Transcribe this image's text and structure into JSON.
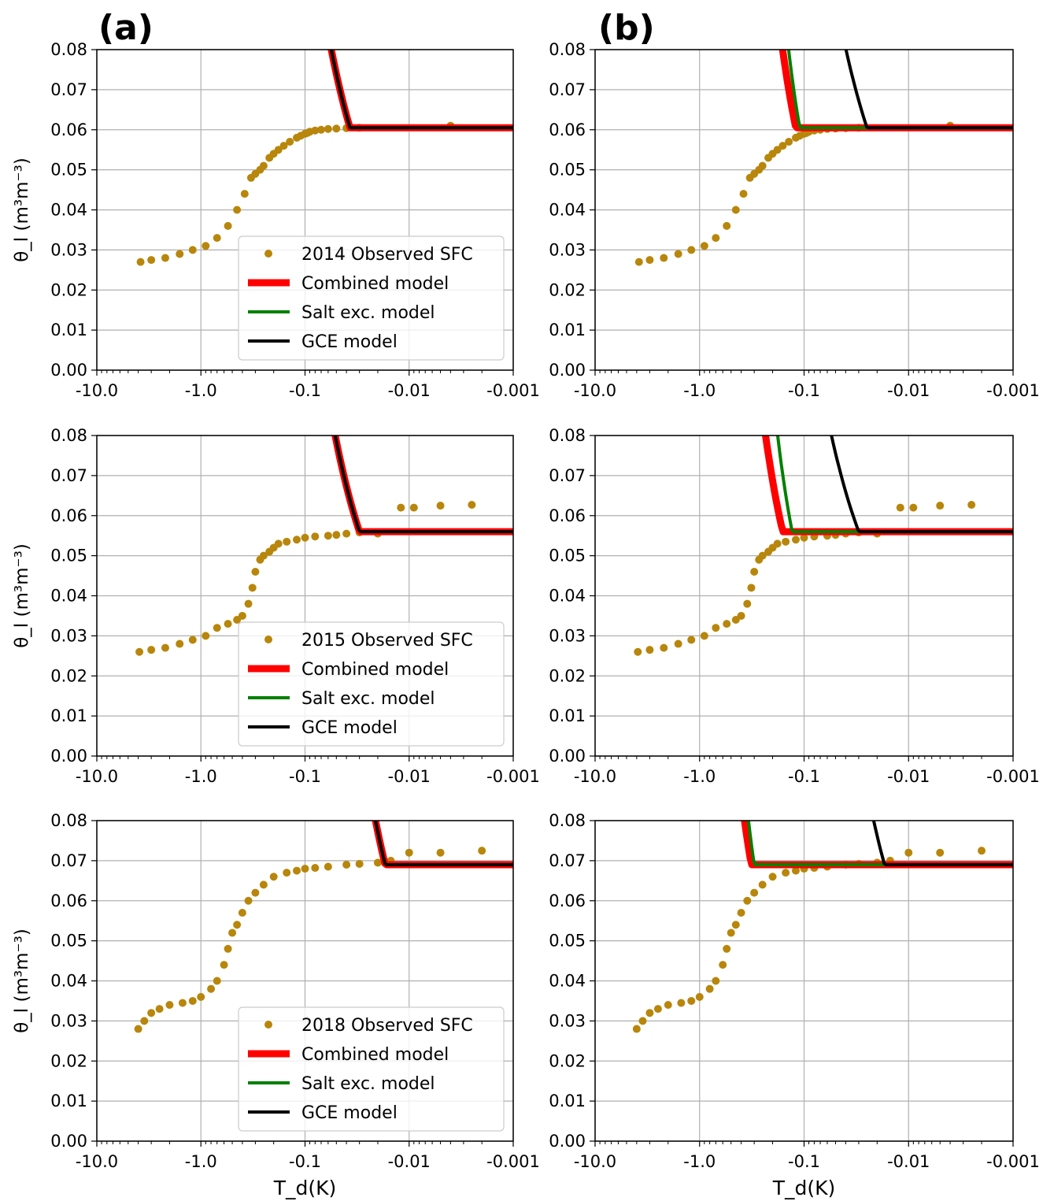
{
  "panel_labels": [
    "(a)",
    "(b)"
  ],
  "x_ticks": [
    "-10.0",
    "-1.0",
    "-0.1",
    "-0.01",
    "-0.001"
  ],
  "y_ticks": [
    "0.00",
    "0.01",
    "0.02",
    "0.03",
    "0.04",
    "0.05",
    "0.06",
    "0.07",
    "0.08"
  ],
  "colors": {
    "observed": "#b8860b",
    "combined": "#ff0000",
    "salt": "#008000",
    "gce": "#000000",
    "grid": "#b0b0b0"
  },
  "chart_data": [
    {
      "type": "scatter",
      "row": 0,
      "col": 0,
      "year": "2014",
      "xlabel": "",
      "ylabel": "θ_l (m³m⁻³)",
      "xscale": "log-negative",
      "xlim": [
        -10,
        -0.001
      ],
      "ylim": [
        0,
        0.08
      ],
      "grid": true,
      "legend": "lower-right",
      "legend_entries": [
        "2014 Observed SFC",
        "Combined model",
        "Salt exc. model",
        "GCE model"
      ],
      "observed": {
        "x": [
          -3.8,
          -3.0,
          -2.2,
          -1.6,
          -1.2,
          -0.9,
          -0.7,
          -0.55,
          -0.45,
          -0.38,
          -0.33,
          -0.3,
          -0.27,
          -0.25,
          -0.22,
          -0.2,
          -0.18,
          -0.16,
          -0.14,
          -0.12,
          -0.11,
          -0.1,
          -0.095,
          -0.09,
          -0.08,
          -0.07,
          -0.06,
          -0.05,
          -0.04,
          -0.03,
          -0.004
        ],
        "y": [
          0.027,
          0.0275,
          0.028,
          0.029,
          0.03,
          0.031,
          0.033,
          0.036,
          0.04,
          0.044,
          0.048,
          0.049,
          0.05,
          0.051,
          0.053,
          0.054,
          0.055,
          0.056,
          0.057,
          0.058,
          0.0585,
          0.059,
          0.0592,
          0.0595,
          0.0598,
          0.06,
          0.0602,
          0.0603,
          0.0604,
          0.0605,
          0.061
        ]
      },
      "combined": {
        "theta_s": 0.0605,
        "theta_r": 0.02,
        "T_knee": -0.037,
        "k": 0.95
      },
      "salt": {
        "theta_s": 0.0605,
        "theta_r": 0.02,
        "T_knee": -1e-05,
        "k": 1.0
      },
      "gce": {
        "theta_s": 0.0605,
        "theta_r": 0.02,
        "T_knee": -0.037,
        "k": 0.95
      }
    },
    {
      "type": "scatter",
      "row": 0,
      "col": 1,
      "year": "2014",
      "xlabel": "",
      "ylabel": "",
      "xscale": "log-negative",
      "xlim": [
        -10,
        -0.001
      ],
      "ylim": [
        0,
        0.08
      ],
      "grid": true,
      "legend": "none",
      "observed": {
        "x": [
          -3.8,
          -3.0,
          -2.2,
          -1.6,
          -1.2,
          -0.9,
          -0.7,
          -0.55,
          -0.45,
          -0.38,
          -0.33,
          -0.3,
          -0.27,
          -0.25,
          -0.22,
          -0.2,
          -0.18,
          -0.16,
          -0.14,
          -0.12,
          -0.11,
          -0.1,
          -0.095,
          -0.09,
          -0.08,
          -0.07,
          -0.06,
          -0.05,
          -0.04,
          -0.03,
          -0.004
        ],
        "y": [
          0.027,
          0.0275,
          0.028,
          0.029,
          0.03,
          0.031,
          0.033,
          0.036,
          0.04,
          0.044,
          0.048,
          0.049,
          0.05,
          0.051,
          0.053,
          0.054,
          0.055,
          0.056,
          0.057,
          0.058,
          0.0585,
          0.059,
          0.0592,
          0.0595,
          0.0598,
          0.06,
          0.0602,
          0.0603,
          0.0604,
          0.0605,
          0.061
        ]
      },
      "combined": {
        "theta_s": 0.0605,
        "theta_r": 0.02,
        "T_knee": -0.12,
        "k": 1.35
      },
      "salt": {
        "theta_s": 0.0605,
        "theta_r": 0.02,
        "T_knee": -0.11,
        "k": 1.6
      },
      "gce": {
        "theta_s": 0.0605,
        "theta_r": 0.02,
        "T_knee": -0.025,
        "k": 0.85
      }
    },
    {
      "type": "scatter",
      "row": 1,
      "col": 0,
      "year": "2015",
      "xlabel": "",
      "ylabel": "θ_l (m³m⁻³)",
      "xscale": "log-negative",
      "xlim": [
        -10,
        -0.001
      ],
      "ylim": [
        0,
        0.08
      ],
      "grid": true,
      "legend": "lower-right",
      "legend_entries": [
        "2015 Observed SFC",
        "Combined model",
        "Salt exc. model",
        "GCE model"
      ],
      "observed": {
        "x": [
          -3.9,
          -3.0,
          -2.2,
          -1.6,
          -1.2,
          -0.9,
          -0.7,
          -0.55,
          -0.45,
          -0.4,
          -0.35,
          -0.32,
          -0.3,
          -0.27,
          -0.25,
          -0.22,
          -0.2,
          -0.18,
          -0.15,
          -0.12,
          -0.1,
          -0.08,
          -0.06,
          -0.05,
          -0.04,
          -0.03,
          -0.02,
          -0.012,
          -0.009,
          -0.005,
          -0.0025
        ],
        "y": [
          0.026,
          0.0265,
          0.027,
          0.028,
          0.029,
          0.03,
          0.032,
          0.033,
          0.034,
          0.035,
          0.038,
          0.042,
          0.046,
          0.049,
          0.05,
          0.051,
          0.052,
          0.053,
          0.0535,
          0.054,
          0.0545,
          0.0548,
          0.055,
          0.0552,
          0.0555,
          0.0558,
          0.0555,
          0.062,
          0.062,
          0.0625,
          0.0627
        ]
      },
      "combined": {
        "theta_s": 0.056,
        "theta_r": 0.02,
        "T_knee": -0.03,
        "k": 0.95
      },
      "salt": {
        "theta_s": 0.056,
        "theta_r": 0.02,
        "T_knee": -1e-05,
        "k": 1.0
      },
      "gce": {
        "theta_s": 0.056,
        "theta_r": 0.02,
        "T_knee": -0.03,
        "k": 0.95
      }
    },
    {
      "type": "scatter",
      "row": 1,
      "col": 1,
      "year": "2015",
      "xlabel": "",
      "ylabel": "",
      "xscale": "log-negative",
      "xlim": [
        -10,
        -0.001
      ],
      "ylim": [
        0,
        0.08
      ],
      "grid": true,
      "legend": "none",
      "observed": {
        "x": [
          -3.9,
          -3.0,
          -2.2,
          -1.6,
          -1.2,
          -0.9,
          -0.7,
          -0.55,
          -0.45,
          -0.4,
          -0.35,
          -0.32,
          -0.3,
          -0.27,
          -0.25,
          -0.22,
          -0.2,
          -0.18,
          -0.15,
          -0.12,
          -0.1,
          -0.08,
          -0.06,
          -0.05,
          -0.04,
          -0.03,
          -0.02,
          -0.012,
          -0.009,
          -0.005,
          -0.0025
        ],
        "y": [
          0.026,
          0.0265,
          0.027,
          0.028,
          0.029,
          0.03,
          0.032,
          0.033,
          0.034,
          0.035,
          0.038,
          0.042,
          0.046,
          0.049,
          0.05,
          0.051,
          0.052,
          0.053,
          0.0535,
          0.054,
          0.0545,
          0.0548,
          0.055,
          0.0552,
          0.0555,
          0.0558,
          0.0555,
          0.062,
          0.062,
          0.0625,
          0.0627
        ]
      },
      "combined": {
        "theta_s": 0.056,
        "theta_r": 0.02,
        "T_knee": -0.16,
        "k": 1.35
      },
      "salt": {
        "theta_s": 0.056,
        "theta_r": 0.02,
        "T_knee": -0.13,
        "k": 1.6
      },
      "gce": {
        "theta_s": 0.056,
        "theta_r": 0.02,
        "T_knee": -0.03,
        "k": 0.85
      }
    },
    {
      "type": "scatter",
      "row": 2,
      "col": 0,
      "year": "2018",
      "xlabel": "T_d(K)",
      "ylabel": "θ_l (m³m⁻³)",
      "xscale": "log-negative",
      "xlim": [
        -10,
        -0.001
      ],
      "ylim": [
        0,
        0.08
      ],
      "grid": true,
      "legend": "lower-right",
      "legend_entries": [
        "2018 Observed SFC",
        "Combined model",
        "Salt exc. model",
        "GCE model"
      ],
      "observed": {
        "x": [
          -4.0,
          -3.5,
          -3.0,
          -2.5,
          -2.0,
          -1.5,
          -1.2,
          -1.0,
          -0.8,
          -0.7,
          -0.6,
          -0.55,
          -0.5,
          -0.45,
          -0.4,
          -0.35,
          -0.3,
          -0.25,
          -0.2,
          -0.15,
          -0.12,
          -0.1,
          -0.08,
          -0.06,
          -0.04,
          -0.03,
          -0.02,
          -0.015,
          -0.01,
          -0.005,
          -0.002
        ],
        "y": [
          0.028,
          0.03,
          0.032,
          0.033,
          0.034,
          0.0345,
          0.035,
          0.036,
          0.038,
          0.04,
          0.044,
          0.048,
          0.052,
          0.054,
          0.057,
          0.06,
          0.062,
          0.064,
          0.066,
          0.067,
          0.0675,
          0.068,
          0.0682,
          0.0685,
          0.069,
          0.0692,
          0.0695,
          0.07,
          0.072,
          0.072,
          0.0725
        ]
      },
      "combined": {
        "theta_s": 0.069,
        "theta_r": 0.02,
        "T_knee": -0.017,
        "k": 0.95
      },
      "salt": {
        "theta_s": 0.069,
        "theta_r": 0.02,
        "T_knee": -1e-05,
        "k": 1.0
      },
      "gce": {
        "theta_s": 0.069,
        "theta_r": 0.02,
        "T_knee": -0.017,
        "k": 0.95
      }
    },
    {
      "type": "scatter",
      "row": 2,
      "col": 1,
      "year": "2018",
      "xlabel": "T_d(K)",
      "ylabel": "",
      "xscale": "log-negative",
      "xlim": [
        -10,
        -0.001
      ],
      "ylim": [
        0,
        0.08
      ],
      "grid": true,
      "legend": "none",
      "observed": {
        "x": [
          -4.0,
          -3.5,
          -3.0,
          -2.5,
          -2.0,
          -1.5,
          -1.2,
          -1.0,
          -0.8,
          -0.7,
          -0.6,
          -0.55,
          -0.5,
          -0.45,
          -0.4,
          -0.35,
          -0.3,
          -0.25,
          -0.2,
          -0.15,
          -0.12,
          -0.1,
          -0.08,
          -0.06,
          -0.04,
          -0.03,
          -0.02,
          -0.015,
          -0.01,
          -0.005,
          -0.002
        ],
        "y": [
          0.028,
          0.03,
          0.032,
          0.033,
          0.034,
          0.0345,
          0.035,
          0.036,
          0.038,
          0.04,
          0.044,
          0.048,
          0.052,
          0.054,
          0.057,
          0.06,
          0.062,
          0.064,
          0.066,
          0.067,
          0.0675,
          0.068,
          0.0682,
          0.0685,
          0.069,
          0.0692,
          0.0695,
          0.07,
          0.072,
          0.072,
          0.0725
        ]
      },
      "combined": {
        "theta_s": 0.069,
        "theta_r": 0.02,
        "T_knee": -0.32,
        "k": 1.35
      },
      "salt": {
        "theta_s": 0.069,
        "theta_r": 0.02,
        "T_knee": -0.3,
        "k": 1.6
      },
      "gce": {
        "theta_s": 0.069,
        "theta_r": 0.02,
        "T_knee": -0.017,
        "k": 0.85
      }
    }
  ]
}
